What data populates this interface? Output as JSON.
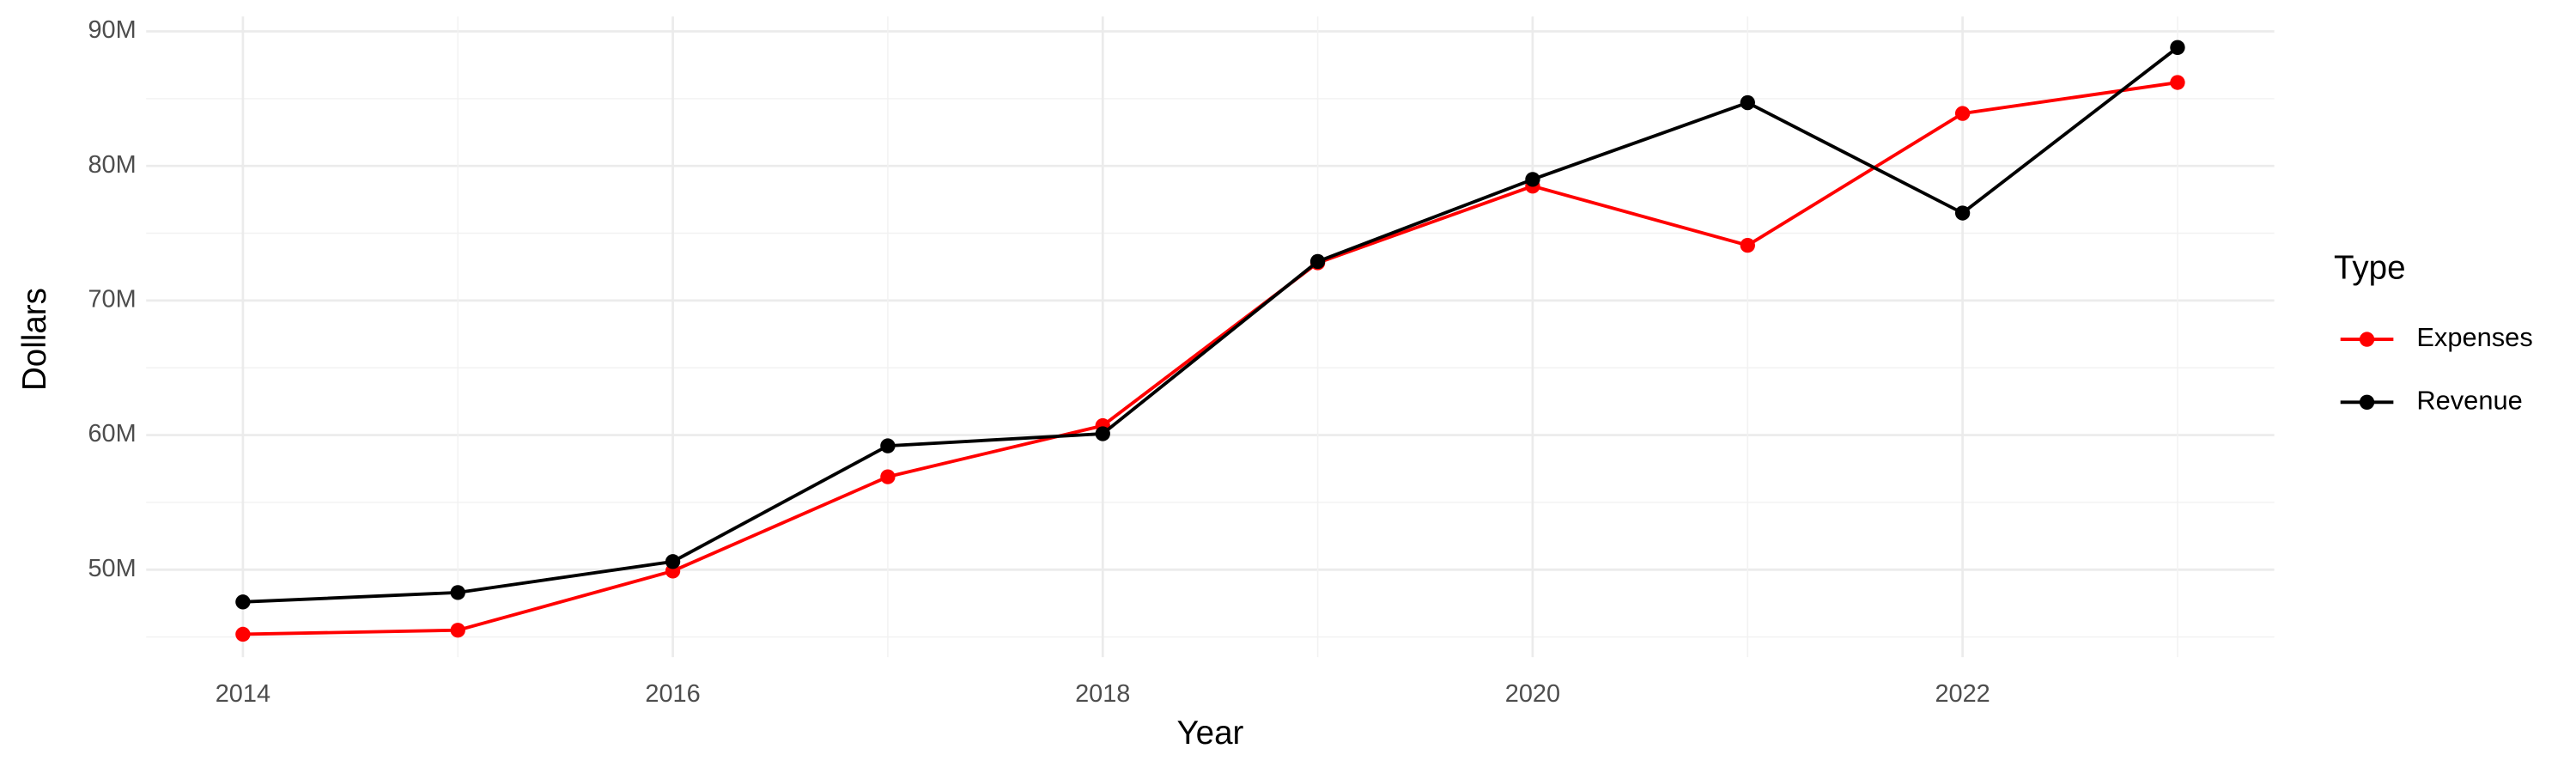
{
  "chart_data": {
    "type": "line",
    "x_label": "Year",
    "y_label": "Dollars",
    "legend_title": "Type",
    "x": [
      2014,
      2015,
      2016,
      2017,
      2018,
      2019,
      2020,
      2021,
      2022,
      2023
    ],
    "series": [
      {
        "name": "Expenses",
        "color": "#ff0000",
        "values": [
          45200000,
          45500000,
          49900000,
          56900000,
          60700000,
          72800000,
          78500000,
          74100000,
          83900000,
          86200000
        ]
      },
      {
        "name": "Revenue",
        "color": "#000000",
        "values": [
          47600000,
          48300000,
          50600000,
          59200000,
          60100000,
          72900000,
          79000000,
          84700000,
          76500000,
          88800000
        ]
      }
    ],
    "xlim": [
      2013.55,
      2023.45
    ],
    "xticks": [
      2014,
      2016,
      2018,
      2020,
      2022
    ],
    "ylim": [
      43500000,
      91100000
    ],
    "yticks": [
      {
        "value": 50000000,
        "label": "50M"
      },
      {
        "value": 60000000,
        "label": "60M"
      },
      {
        "value": 70000000,
        "label": "70M"
      },
      {
        "value": 80000000,
        "label": "80M"
      },
      {
        "value": 90000000,
        "label": "90M"
      }
    ],
    "grid": true,
    "legend_position": "right"
  }
}
